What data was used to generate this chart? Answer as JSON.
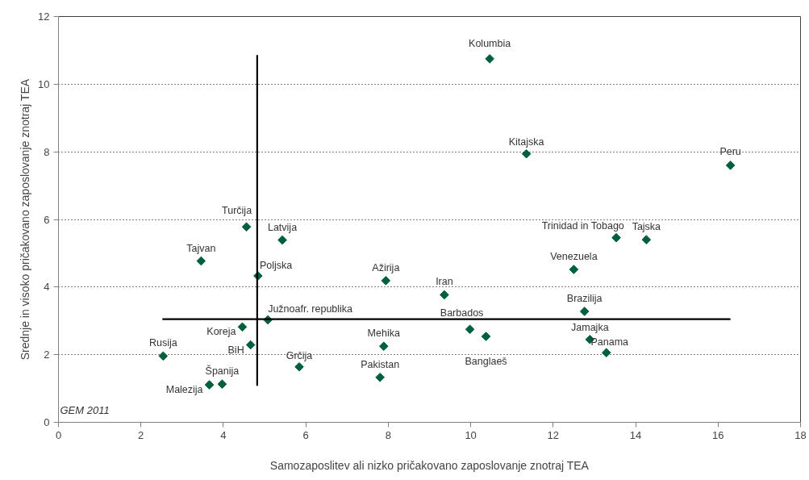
{
  "chart_data": {
    "type": "scatter",
    "xlabel": "Samozaposlitev ali nizko pričakovano zaposlovanje znotraj TEA",
    "ylabel": "Srednje in visoko pričakovano zaposlovanje znotraj TEA",
    "xlim": [
      0,
      18
    ],
    "xticks": [
      0,
      2,
      4,
      6,
      8,
      10,
      12,
      14,
      16,
      18
    ],
    "ylim": [
      0,
      12
    ],
    "yticks": [
      0,
      2,
      4,
      6,
      8,
      10,
      12
    ],
    "grid": "y",
    "marker": "diamond",
    "series": [
      {
        "color": "#00603c",
        "x": [
          10.46,
          11.35,
          16.3,
          4.56,
          5.43,
          3.46,
          4.84,
          5.08,
          4.46,
          4.66,
          2.54,
          5.84,
          3.66,
          3.97,
          7.94,
          9.36,
          13.53,
          14.26,
          12.5,
          12.76,
          9.98,
          10.37,
          7.89,
          7.8,
          12.89,
          13.29
        ],
        "values": [
          10.75,
          7.94,
          7.6,
          5.78,
          5.39,
          4.77,
          4.33,
          3.03,
          2.82,
          2.29,
          1.96,
          1.64,
          1.11,
          1.13,
          4.19,
          3.77,
          5.46,
          5.4,
          4.52,
          3.28,
          2.75,
          2.54,
          2.25,
          1.33,
          2.45,
          2.06
        ]
      },
      {
        "type": "line",
        "marker": "none",
        "color": "#000000",
        "x": [
          4.82,
          4.82
        ],
        "values": [
          1.08,
          10.86
        ]
      },
      {
        "type": "line",
        "marker": "none",
        "color": "#000000",
        "x": [
          2.52,
          16.3
        ],
        "values": [
          3.05,
          3.05
        ]
      }
    ],
    "annotations": [
      {
        "text": "Kolumbia",
        "x": 10.46,
        "y": 10.75
      },
      {
        "text": "Kitajska",
        "x": 11.35,
        "y": 7.94
      },
      {
        "text": "Peru",
        "x": 16.3,
        "y": 7.6
      },
      {
        "text": "Turčija",
        "x": 4.56,
        "y": 5.78
      },
      {
        "text": "Latvija",
        "x": 5.43,
        "y": 5.39
      },
      {
        "text": "Tajvan",
        "x": 3.46,
        "y": 4.77
      },
      {
        "text": "Poljska",
        "x": 4.84,
        "y": 4.33
      },
      {
        "text": "Južnoafr. republika",
        "x": 5.08,
        "y": 3.03
      },
      {
        "text": "Koreja",
        "x": 4.46,
        "y": 2.82
      },
      {
        "text": "BiH",
        "x": 4.66,
        "y": 2.29
      },
      {
        "text": "Rusija",
        "x": 2.54,
        "y": 1.96
      },
      {
        "text": "Grčija",
        "x": 5.84,
        "y": 1.64
      },
      {
        "text": "Malezija",
        "x": 3.66,
        "y": 1.11
      },
      {
        "text": "Španija",
        "x": 3.97,
        "y": 1.13
      },
      {
        "text": "Ažirija",
        "x": 7.94,
        "y": 4.19
      },
      {
        "text": "Iran",
        "x": 9.36,
        "y": 3.77
      },
      {
        "text": "Trinidad in Tobago",
        "x": 13.53,
        "y": 5.46
      },
      {
        "text": "Tajska",
        "x": 14.26,
        "y": 5.4
      },
      {
        "text": "Venezuela",
        "x": 12.5,
        "y": 4.52
      },
      {
        "text": "Brazilija",
        "x": 12.76,
        "y": 3.28
      },
      {
        "text": "Barbados",
        "x": 9.98,
        "y": 2.75
      },
      {
        "text": "Banglaeš",
        "x": 10.37,
        "y": 2.54
      },
      {
        "text": "Mehika",
        "x": 7.89,
        "y": 2.25
      },
      {
        "text": "Pakistan",
        "x": 7.8,
        "y": 1.33
      },
      {
        "text": "Jamajka",
        "x": 12.89,
        "y": 2.45
      },
      {
        "text": "Panama",
        "x": 13.29,
        "y": 2.06
      },
      "GEM 2011"
    ]
  }
}
